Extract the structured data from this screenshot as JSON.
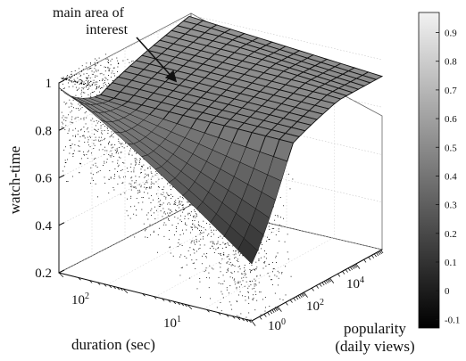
{
  "chart_data": {
    "type": "surface",
    "zlabel": "watch-time",
    "xlabel": "duration (sec)",
    "ylabel_lines": [
      "popularity",
      "(daily views)"
    ],
    "annotation_lines": [
      "main area of",
      "interest"
    ],
    "z_ticks": [
      "0.2",
      "0.4",
      "0.6",
      "0.8",
      "1"
    ],
    "z_tick_values": [
      0.2,
      0.4,
      0.6,
      0.8,
      1.0
    ],
    "duration_ticks": [
      {
        "base": "10",
        "exp": "2"
      },
      {
        "base": "10",
        "exp": "1"
      }
    ],
    "popularity_ticks": [
      {
        "base": "10",
        "exp": "0"
      },
      {
        "base": "10",
        "exp": "2"
      },
      {
        "base": "10",
        "exp": "4"
      }
    ],
    "colorbar": {
      "ticks": [
        "0.9",
        "0.8",
        "0.7",
        "0.6",
        "0.5",
        "0.4",
        "0.3",
        "0.2",
        "0.1",
        "0",
        "-0.1"
      ],
      "values": [
        0.9,
        0.8,
        0.7,
        0.6,
        0.5,
        0.4,
        0.3,
        0.2,
        0.1,
        0.0,
        -0.1
      ],
      "min": -0.13,
      "max": 0.97,
      "colormap": "gray"
    },
    "surface": {
      "duration_log_range": [
        0.3,
        2.7
      ],
      "popularity_log_range": [
        0,
        5
      ],
      "watch_time_range": [
        0.44,
        0.98
      ],
      "plateau_low_popularity": 0.6,
      "plateau_high_popularity": 0.98
    },
    "scatter": {
      "description_free": true,
      "color": "#000000"
    },
    "grid": true
  }
}
